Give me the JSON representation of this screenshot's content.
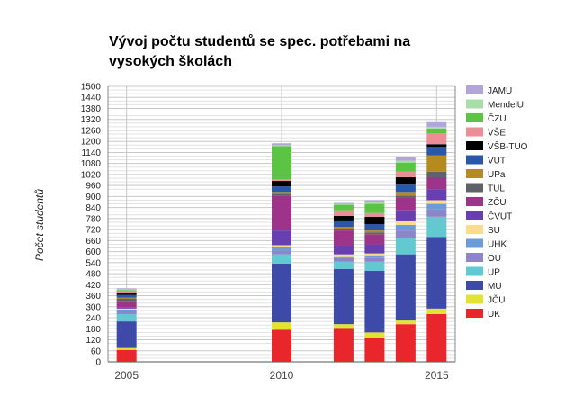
{
  "chart_data": {
    "type": "bar",
    "stacked": true,
    "title": "Vývoj počtu studentů se spec. potřebami na vysokých školách",
    "ylabel": "Počet studentů",
    "xlabel": "",
    "ylim": [
      0,
      1500
    ],
    "ytick_step": 20,
    "ytick_label_step": 60,
    "grid": true,
    "legend_placement": "right",
    "x": [
      2005,
      2010,
      2012,
      2013,
      2014,
      2015
    ],
    "xlim": [
      2004.4,
      2015.6
    ],
    "xtick_labels": [
      "2005",
      "2010",
      "2015"
    ],
    "xtick_values": [
      2005,
      2010,
      2015
    ],
    "series": [
      {
        "name": "UK",
        "color": "#e8262b",
        "values": [
          65,
          175,
          185,
          130,
          205,
          260
        ]
      },
      {
        "name": "JČU",
        "color": "#e3e336",
        "values": [
          10,
          40,
          20,
          30,
          20,
          30
        ]
      },
      {
        "name": "MU",
        "color": "#3d4aa8",
        "values": [
          145,
          320,
          300,
          335,
          360,
          390
        ]
      },
      {
        "name": "UP",
        "color": "#63c8d0",
        "values": [
          40,
          50,
          40,
          50,
          90,
          110
        ]
      },
      {
        "name": "OU",
        "color": "#8d84c9",
        "values": [
          15,
          20,
          20,
          20,
          40,
          40
        ]
      },
      {
        "name": "UHK",
        "color": "#6c9bd8",
        "values": [
          10,
          20,
          10,
          15,
          30,
          30
        ]
      },
      {
        "name": "SU",
        "color": "#fadc8c",
        "values": [
          5,
          10,
          10,
          10,
          20,
          20
        ]
      },
      {
        "name": "ČVUT",
        "color": "#673fb0",
        "values": [
          5,
          80,
          50,
          50,
          60,
          60
        ]
      },
      {
        "name": "ZČU",
        "color": "#9e3489",
        "values": [
          35,
          190,
          80,
          55,
          70,
          65
        ]
      },
      {
        "name": "TUL",
        "color": "#5f6368",
        "values": [
          15,
          10,
          10,
          10,
          10,
          30
        ]
      },
      {
        "name": "UPa",
        "color": "#b48a21",
        "values": [
          5,
          10,
          10,
          10,
          20,
          90
        ]
      },
      {
        "name": "VUT",
        "color": "#2a58a8",
        "values": [
          15,
          30,
          30,
          35,
          40,
          45
        ]
      },
      {
        "name": "VŠB-TUO",
        "color": "#000000",
        "values": [
          10,
          30,
          30,
          40,
          40,
          15
        ]
      },
      {
        "name": "VŠE",
        "color": "#ed8d96",
        "values": [
          10,
          10,
          30,
          20,
          30,
          60
        ]
      },
      {
        "name": "ČZU",
        "color": "#5cc444",
        "values": [
          5,
          180,
          30,
          50,
          50,
          25
        ]
      },
      {
        "name": "MendelU",
        "color": "#a8dfa8",
        "values": [
          5,
          5,
          5,
          10,
          10,
          10
        ]
      },
      {
        "name": "JAMU",
        "color": "#b3a5da",
        "values": [
          5,
          10,
          5,
          10,
          20,
          25
        ]
      }
    ]
  }
}
